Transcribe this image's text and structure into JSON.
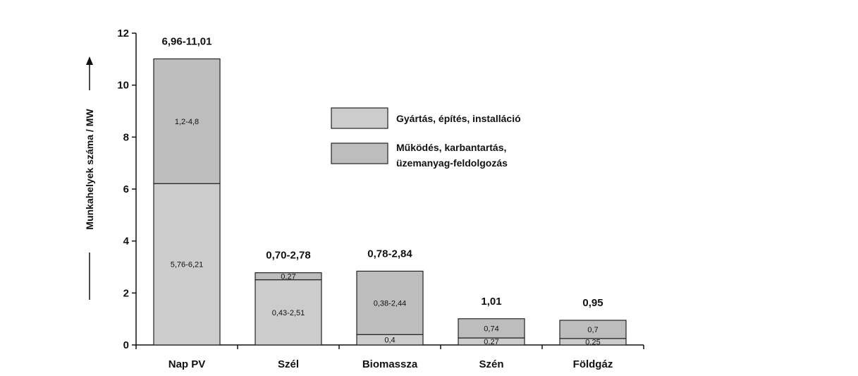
{
  "chart_data": {
    "type": "bar",
    "stacked": true,
    "ylabel": "Munkahelyek száma / MW",
    "ylim": [
      0,
      12
    ],
    "yticks": [
      "0",
      "2",
      "4",
      "6",
      "8",
      "10",
      "12"
    ],
    "grid": false,
    "legend_position": "right",
    "categories": [
      "Nap PV",
      "Szél",
      "Biomassza",
      "Szén",
      "Földgáz"
    ],
    "totals_labels": [
      "6,96-11,01",
      "0,70-2,78",
      "0,78-2,84",
      "1,01",
      "0,95"
    ],
    "series": [
      {
        "name": "Gyártás, építés, installáció",
        "color": "#cccccc",
        "values": [
          6.21,
          2.51,
          0.4,
          0.27,
          0.25
        ],
        "labels": [
          "5,76-6,21",
          "0,43-2,51",
          "0,4",
          "0,27",
          "0,25"
        ]
      },
      {
        "name": "Működés, karbantartás, üzemanyag-feldolgozás",
        "name_lines": [
          "Működés, karbantartás,",
          "üzemanyag-feldolgozás"
        ],
        "color": "#bdbdbd",
        "values": [
          4.8,
          0.27,
          2.44,
          0.74,
          0.7
        ],
        "labels": [
          "1,2-4,8",
          "0,27",
          "0,38-2,44",
          "0,74",
          "0,7"
        ]
      }
    ]
  }
}
